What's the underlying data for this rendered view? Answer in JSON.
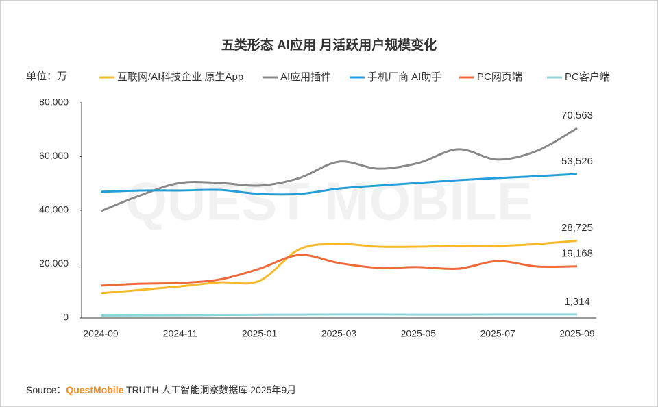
{
  "chart_data": {
    "type": "line",
    "title": "五类形态 AI应用 月活跃用户规模变化",
    "unit_label": "单位：万",
    "watermark": "QUEST MOBILE",
    "categories": [
      "2024-09",
      null,
      "2024-11",
      null,
      "2025-01",
      null,
      "2025-03",
      null,
      "2025-05",
      null,
      "2025-07",
      null,
      "2025-09"
    ],
    "ylim": [
      0,
      80000
    ],
    "yticks": [
      0,
      {
        "value": 20000,
        "label": "20,000"
      },
      {
        "value": 40000,
        "label": "40,000"
      },
      {
        "value": 60000,
        "label": "60,000"
      },
      {
        "value": 80000,
        "label": "80,000"
      }
    ],
    "series": [
      {
        "name": "互联网/AI科技企业 原生App",
        "color": "#f7b928",
        "values": [
          9200,
          10400,
          11700,
          13200,
          13800,
          25500,
          27500,
          26500,
          26500,
          26800,
          26800,
          27500,
          28725
        ],
        "value_labels": [
          null,
          null,
          null,
          null,
          null,
          null,
          null,
          null,
          null,
          null,
          null,
          null,
          "28,725"
        ]
      },
      {
        "name": "AI应用插件",
        "color": "#888888",
        "values": [
          39700,
          45600,
          50200,
          50200,
          49200,
          52000,
          58100,
          55500,
          57600,
          62700,
          58900,
          62200,
          70563
        ],
        "value_labels": [
          null,
          null,
          null,
          null,
          null,
          null,
          null,
          null,
          null,
          null,
          null,
          null,
          "70,563"
        ]
      },
      {
        "name": "手机厂商 AI助手",
        "color": "#259fd9",
        "values": [
          46900,
          47400,
          47400,
          47600,
          46100,
          46100,
          48100,
          49200,
          50200,
          51200,
          52000,
          52700,
          53526
        ],
        "value_labels": [
          null,
          null,
          null,
          null,
          null,
          null,
          null,
          null,
          null,
          null,
          null,
          null,
          "53,526"
        ]
      },
      {
        "name": "PC网页端",
        "color": "#ee6a3b",
        "values": [
          12000,
          12700,
          13000,
          14300,
          18300,
          23400,
          20400,
          18600,
          18900,
          18300,
          21100,
          19100,
          19168
        ],
        "value_labels": [
          null,
          null,
          null,
          null,
          null,
          null,
          null,
          null,
          null,
          null,
          null,
          null,
          "19,168"
        ]
      },
      {
        "name": "PC客户端",
        "color": "#8fd6dc",
        "values": [
          900,
          950,
          1000,
          1100,
          1200,
          1250,
          1300,
          1300,
          1250,
          1250,
          1300,
          1300,
          1314
        ],
        "value_labels": [
          null,
          null,
          null,
          null,
          null,
          null,
          null,
          null,
          null,
          null,
          null,
          null,
          "1,314"
        ]
      }
    ],
    "source": {
      "prefix": "Source：",
      "brand": "QuestMobile",
      "rest": " TRUTH 人工智能洞察数据库 2025年9月"
    }
  }
}
